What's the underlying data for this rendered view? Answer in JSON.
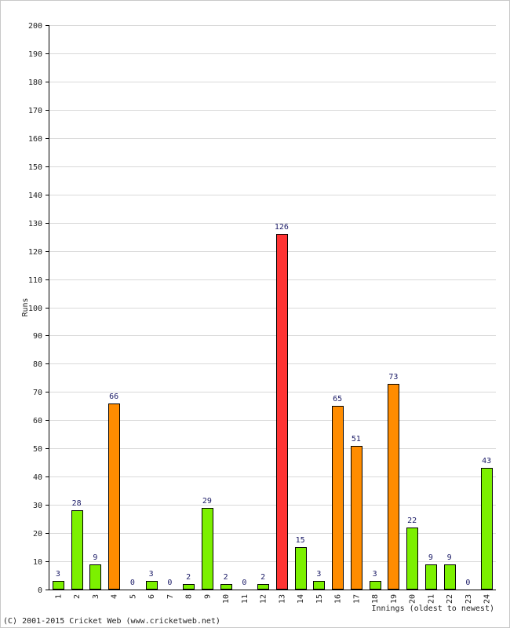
{
  "chart_data": {
    "type": "bar",
    "ylabel": "Runs",
    "xlabel": "Innings (oldest to newest)",
    "ylim": [
      0,
      200
    ],
    "y_ticks": [
      0,
      10,
      20,
      30,
      40,
      50,
      60,
      70,
      80,
      90,
      100,
      110,
      120,
      130,
      140,
      150,
      160,
      170,
      180,
      190,
      200
    ],
    "grid": true,
    "categories": [
      "1",
      "2",
      "3",
      "4",
      "5",
      "6",
      "7",
      "8",
      "9",
      "10",
      "11",
      "12",
      "13",
      "14",
      "15",
      "16",
      "17",
      "18",
      "19",
      "20",
      "21",
      "22",
      "23",
      "24"
    ],
    "values": [
      3,
      28,
      9,
      66,
      0,
      3,
      0,
      2,
      29,
      2,
      0,
      2,
      126,
      15,
      3,
      65,
      51,
      3,
      73,
      22,
      9,
      9,
      0,
      43
    ],
    "bar_colors": {
      "below_50": "#7cf000",
      "fifty": "#ff8c00",
      "hundred": "#ff3333"
    }
  },
  "footer": {
    "copyright": "(C) 2001-2015 Cricket Web (www.cricketweb.net)"
  }
}
